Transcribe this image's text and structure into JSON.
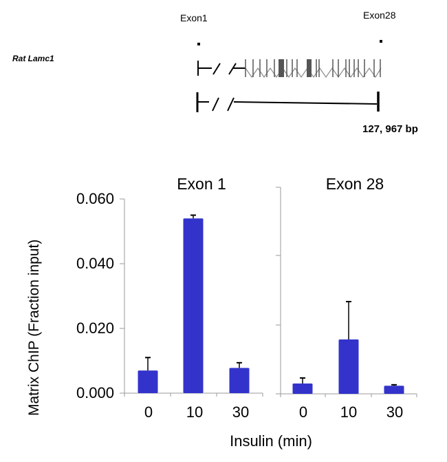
{
  "gene_diagram": {
    "gene_name": "Rat Lamc1",
    "exon_start_label": "Exon1",
    "exon_end_label": "Exon28",
    "length_label": "127, 967 bp"
  },
  "chart_data": {
    "type": "bar",
    "ylabel": "Matrix ChIP (Fraction input)",
    "xlabel": "Insulin (min)",
    "ylim": [
      0,
      0.06
    ],
    "yticks": [
      "0.000",
      "0.020",
      "0.040",
      "0.060"
    ],
    "grid": false,
    "bar_color": "#3333CC",
    "panels": [
      {
        "title": "Exon 1",
        "categories": [
          "0",
          "10",
          "30"
        ],
        "values": [
          0.007,
          0.054,
          0.0078
        ],
        "error_upper": [
          0.011,
          0.055,
          0.0094
        ]
      },
      {
        "title": "Exon 28",
        "categories": [
          "0",
          "10",
          "30"
        ],
        "values": [
          0.0032,
          0.0168,
          0.0025
        ],
        "error_upper": [
          0.0049,
          0.0285,
          0.0028
        ]
      }
    ]
  }
}
